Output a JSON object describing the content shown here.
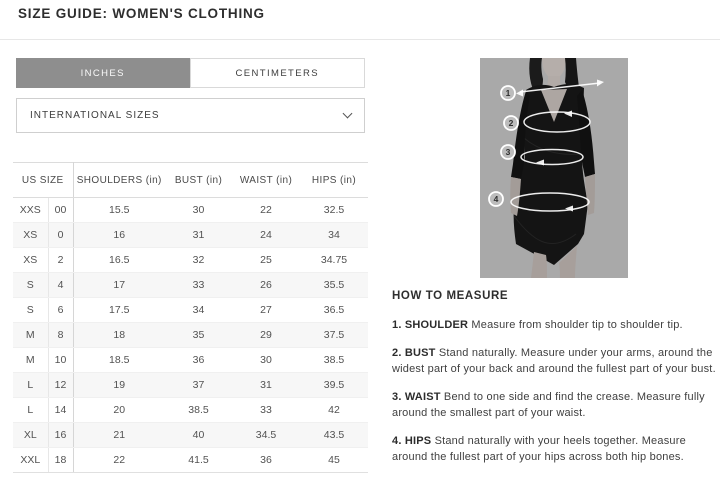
{
  "page": {
    "title": "SIZE GUIDE: WOMEN'S CLOTHING"
  },
  "colors": {
    "tab_selected_bg": "#8e8e8e",
    "backdrop": "#a9a9a9",
    "annotation": "#ffffff",
    "row_alt_bg": "#f7f7f7"
  },
  "tabs": [
    {
      "label": "INCHES",
      "selected": true
    },
    {
      "label": "CENTIMETERS",
      "selected": false
    }
  ],
  "dropdown": {
    "value": "INTERNATIONAL SIZES"
  },
  "size_table": {
    "headers": [
      "US SIZE",
      "SHOULDERS (in)",
      "BUST (in)",
      "WAIST (in)",
      "HIPS (in)"
    ],
    "rows": [
      [
        "XXS",
        "00",
        "15.5",
        "30",
        "22",
        "32.5"
      ],
      [
        "XS",
        "0",
        "16",
        "31",
        "24",
        "34"
      ],
      [
        "XS",
        "2",
        "16.5",
        "32",
        "25",
        "34.75"
      ],
      [
        "S",
        "4",
        "17",
        "33",
        "26",
        "35.5"
      ],
      [
        "S",
        "6",
        "17.5",
        "34",
        "27",
        "36.5"
      ],
      [
        "M",
        "8",
        "18",
        "35",
        "29",
        "37.5"
      ],
      [
        "M",
        "10",
        "18.5",
        "36",
        "30",
        "38.5"
      ],
      [
        "L",
        "12",
        "19",
        "37",
        "31",
        "39.5"
      ],
      [
        "L",
        "14",
        "20",
        "38.5",
        "33",
        "42"
      ],
      [
        "XL",
        "16",
        "21",
        "40",
        "34.5",
        "43.5"
      ],
      [
        "XXL",
        "18",
        "22",
        "41.5",
        "36",
        "45"
      ]
    ]
  },
  "figure": {
    "markers": [
      "1",
      "2",
      "3",
      "4"
    ]
  },
  "measure_guide": {
    "heading": "HOW TO MEASURE",
    "steps": [
      {
        "label": "1. SHOULDER",
        "text": "Measure from shoulder tip to shoulder tip."
      },
      {
        "label": "2. BUST",
        "text": "Stand naturally. Measure under your arms, around the widest part of your back and around the fullest part of your bust."
      },
      {
        "label": "3. WAIST",
        "text": "Bend to one side and find the crease. Measure fully around the smallest part of your waist."
      },
      {
        "label": "4. HIPS",
        "text": "Stand naturally with your heels together. Measure around the fullest part of your hips across both hip bones."
      }
    ]
  }
}
